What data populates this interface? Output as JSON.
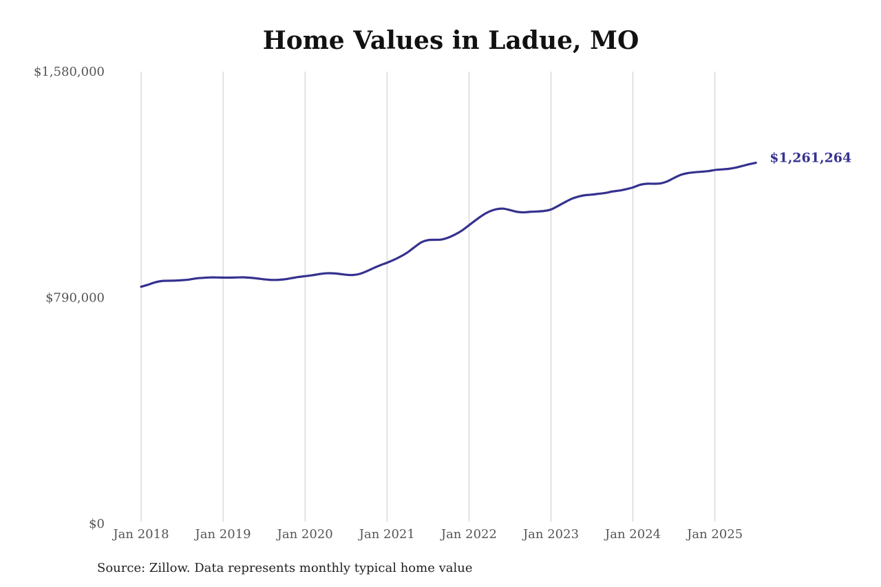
{
  "chart_data": {
    "type": "line",
    "title": "Home Values in Ladue, MO",
    "xlabel": "",
    "ylabel": "",
    "x_range": [
      "2018-01",
      "2025-08"
    ],
    "ylim": [
      0,
      1580000
    ],
    "y_ticks": [
      {
        "value": 0,
        "label": "$0"
      },
      {
        "value": 790000,
        "label": "$790,000"
      },
      {
        "value": 1580000,
        "label": "$1,580,000"
      }
    ],
    "x_ticks": [
      {
        "date": "2018-01",
        "label": "Jan 2018"
      },
      {
        "date": "2019-01",
        "label": "Jan 2019"
      },
      {
        "date": "2020-01",
        "label": "Jan 2020"
      },
      {
        "date": "2021-01",
        "label": "Jan 2021"
      },
      {
        "date": "2022-01",
        "label": "Jan 2022"
      },
      {
        "date": "2023-01",
        "label": "Jan 2023"
      },
      {
        "date": "2024-01",
        "label": "Jan 2024"
      },
      {
        "date": "2025-01",
        "label": "Jan 2025"
      }
    ],
    "vertical_gridlines": true,
    "horizontal_gridlines": false,
    "line_color": "#35318f",
    "end_label": "$1,261,264",
    "series": [
      {
        "points": [
          [
            "2018-01",
            828000
          ],
          [
            "2018-02",
            835000
          ],
          [
            "2018-03",
            843000
          ],
          [
            "2018-04",
            848000
          ],
          [
            "2018-05",
            849000
          ],
          [
            "2018-06",
            849500
          ],
          [
            "2018-07",
            851000
          ],
          [
            "2018-08",
            853000
          ],
          [
            "2018-09",
            857000
          ],
          [
            "2018-10",
            859000
          ],
          [
            "2018-11",
            860500
          ],
          [
            "2018-12",
            860500
          ],
          [
            "2019-01",
            860000
          ],
          [
            "2019-02",
            860000
          ],
          [
            "2019-03",
            860500
          ],
          [
            "2019-04",
            861000
          ],
          [
            "2019-05",
            859500
          ],
          [
            "2019-06",
            857000
          ],
          [
            "2019-07",
            854000
          ],
          [
            "2019-08",
            852000
          ],
          [
            "2019-09",
            852000
          ],
          [
            "2019-10",
            854000
          ],
          [
            "2019-11",
            858000
          ],
          [
            "2019-12",
            862000
          ],
          [
            "2020-01",
            865000
          ],
          [
            "2020-02",
            868000
          ],
          [
            "2020-03",
            872000
          ],
          [
            "2020-04",
            875000
          ],
          [
            "2020-05",
            875000
          ],
          [
            "2020-06",
            873000
          ],
          [
            "2020-07",
            870000
          ],
          [
            "2020-08",
            869000
          ],
          [
            "2020-09",
            873000
          ],
          [
            "2020-10",
            882000
          ],
          [
            "2020-11",
            893000
          ],
          [
            "2020-12",
            903000
          ],
          [
            "2021-01",
            912000
          ],
          [
            "2021-02",
            922000
          ],
          [
            "2021-03",
            934000
          ],
          [
            "2021-04",
            948000
          ],
          [
            "2021-05",
            966000
          ],
          [
            "2021-06",
            983000
          ],
          [
            "2021-07",
            991000
          ],
          [
            "2021-08",
            992000
          ],
          [
            "2021-09",
            993000
          ],
          [
            "2021-10",
            1000000
          ],
          [
            "2021-11",
            1011000
          ],
          [
            "2021-12",
            1025000
          ],
          [
            "2022-01",
            1043000
          ],
          [
            "2022-02",
            1061000
          ],
          [
            "2022-03",
            1078000
          ],
          [
            "2022-04",
            1091000
          ],
          [
            "2022-05",
            1099000
          ],
          [
            "2022-06",
            1101000
          ],
          [
            "2022-07",
            1096000
          ],
          [
            "2022-08",
            1090000
          ],
          [
            "2022-09",
            1088000
          ],
          [
            "2022-10",
            1090000
          ],
          [
            "2022-11",
            1091000
          ],
          [
            "2022-12",
            1093000
          ],
          [
            "2023-01",
            1098000
          ],
          [
            "2023-02",
            1110000
          ],
          [
            "2023-03",
            1123000
          ],
          [
            "2023-04",
            1135000
          ],
          [
            "2023-05",
            1143000
          ],
          [
            "2023-06",
            1148000
          ],
          [
            "2023-07",
            1150000
          ],
          [
            "2023-08",
            1153000
          ],
          [
            "2023-09",
            1156000
          ],
          [
            "2023-10",
            1161000
          ],
          [
            "2023-11",
            1164000
          ],
          [
            "2023-12",
            1169000
          ],
          [
            "2024-01",
            1175000
          ],
          [
            "2024-02",
            1184000
          ],
          [
            "2024-03",
            1188000
          ],
          [
            "2024-04",
            1188000
          ],
          [
            "2024-05",
            1189000
          ],
          [
            "2024-06",
            1196000
          ],
          [
            "2024-07",
            1208000
          ],
          [
            "2024-08",
            1219000
          ],
          [
            "2024-09",
            1225000
          ],
          [
            "2024-10",
            1228000
          ],
          [
            "2024-11",
            1230000
          ],
          [
            "2024-12",
            1232000
          ],
          [
            "2025-01",
            1236000
          ],
          [
            "2025-02",
            1238000
          ],
          [
            "2025-03",
            1240000
          ],
          [
            "2025-04",
            1244000
          ],
          [
            "2025-05",
            1250000
          ],
          [
            "2025-06",
            1256000
          ],
          [
            "2025-07",
            1261264
          ]
        ]
      }
    ]
  },
  "footer": {
    "source": "Source: Zillow. Data represents monthly typical home value"
  }
}
